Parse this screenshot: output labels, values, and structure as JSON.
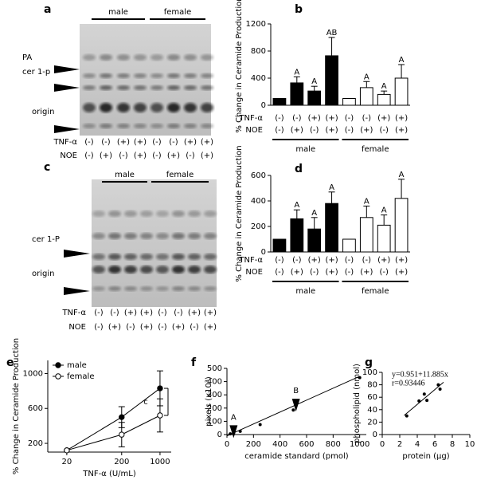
{
  "gels": [
    {
      "label": "a",
      "groups": [
        "male",
        "female"
      ],
      "band_labels": [
        "PA",
        "cer 1-p",
        "origin"
      ],
      "rows": [
        {
          "name": "TNF-α",
          "labels": [
            "(-)",
            "(-)",
            "(+)",
            "(+)",
            "(-)",
            "(-)",
            "(+)",
            "(+)"
          ]
        },
        {
          "name": "NOE",
          "labels": [
            "(-)",
            "(+)",
            "(-)",
            "(+)",
            "(-)",
            "(+)",
            "(-)",
            "(+)"
          ]
        }
      ]
    },
    {
      "label": "c",
      "groups": [
        "male",
        "female"
      ],
      "band_labels": [
        "cer 1-P",
        "origin"
      ],
      "rows": [
        {
          "name": "TNF-α",
          "labels": [
            "(-)",
            "(-)",
            "(+)",
            "(+)",
            "(-)",
            "(-)",
            "(+)",
            "(+)"
          ]
        },
        {
          "name": "NOE",
          "labels": [
            "(-)",
            "(+)",
            "(-)",
            "(+)",
            "(-)",
            "(+)",
            "(-)",
            "(+)"
          ]
        }
      ]
    }
  ],
  "chart_data": [
    {
      "type": "bar",
      "label": "b",
      "y_label": "% Change in Ceramide Production",
      "ylim": [
        0,
        1200
      ],
      "yticks": [
        0,
        400,
        800,
        1200
      ],
      "rows": [
        {
          "name": "TNF-α",
          "labels": [
            "(-)",
            "(-)",
            "(+)",
            "(+)",
            "(-)",
            "(-)",
            "(+)",
            "(+)"
          ]
        },
        {
          "name": "NOE",
          "labels": [
            "(-)",
            "(+)",
            "(-)",
            "(+)",
            "(-)",
            "(+)",
            "(-)",
            "(+)"
          ]
        }
      ],
      "series": [
        {
          "name": "male",
          "color": "#000000",
          "values": [
            100,
            330,
            210,
            730
          ],
          "errors": [
            null,
            90,
            70,
            270
          ],
          "annotations": [
            null,
            "A",
            "A",
            "AB"
          ]
        },
        {
          "name": "female",
          "color": "#ffffff",
          "values": [
            100,
            260,
            160,
            400
          ],
          "errors": [
            null,
            90,
            50,
            200
          ],
          "annotations": [
            null,
            "A",
            "A",
            "A"
          ]
        }
      ]
    },
    {
      "type": "bar",
      "label": "d",
      "y_label": "% Change in Ceramide Production",
      "ylim": [
        0,
        600
      ],
      "yticks": [
        0,
        200,
        400,
        600
      ],
      "rows": [
        {
          "name": "TNF-α",
          "labels": [
            "(-)",
            "(-)",
            "(+)",
            "(+)",
            "(-)",
            "(-)",
            "(+)",
            "(+)"
          ]
        },
        {
          "name": "NOE",
          "labels": [
            "(-)",
            "(+)",
            "(-)",
            "(+)",
            "(-)",
            "(+)",
            "(-)",
            "(+)"
          ]
        }
      ],
      "series": [
        {
          "name": "male",
          "color": "#000000",
          "values": [
            100,
            260,
            180,
            380
          ],
          "errors": [
            null,
            70,
            90,
            90
          ],
          "annotations": [
            null,
            "A",
            "A",
            "A"
          ]
        },
        {
          "name": "female",
          "color": "#ffffff",
          "values": [
            100,
            270,
            210,
            420
          ],
          "errors": [
            null,
            90,
            80,
            150
          ],
          "annotations": [
            null,
            "A",
            "A",
            "A"
          ]
        }
      ]
    },
    {
      "type": "line",
      "label": "e",
      "x_label": "TNF-α (U/mL)",
      "y_label": "% Change in Ceramide Production",
      "xscale": "log",
      "x": [
        20,
        200,
        1000
      ],
      "xlim": [
        9,
        1600
      ],
      "xticks": [
        20,
        200,
        1000
      ],
      "ylim": [
        100,
        1150
      ],
      "yticks": [
        200,
        600,
        1000
      ],
      "annotation": "c",
      "series": [
        {
          "name": "male",
          "color": "#000000",
          "marker_fill": "#000000",
          "values": [
            120,
            500,
            830
          ],
          "errors": [
            null,
            120,
            200
          ]
        },
        {
          "name": "female",
          "color": "#000000",
          "marker_fill": "#ffffff",
          "values": [
            120,
            300,
            520
          ],
          "errors": [
            null,
            140,
            190
          ]
        }
      ]
    },
    {
      "type": "scatter",
      "label": "f",
      "x_label": "ceramide standard (pmol)",
      "y_label": "pixels (x10³)",
      "xlim": [
        0,
        1050
      ],
      "xticks": [
        0,
        200,
        400,
        600,
        800,
        1000
      ],
      "ylim": [
        0,
        500
      ],
      "yticks": [
        0,
        100,
        200,
        300,
        400,
        500
      ],
      "series": [
        {
          "color": "#000000",
          "x": [
            25,
            50,
            100,
            250,
            500,
            1000
          ],
          "values": [
            5,
            10,
            25,
            75,
            185,
            430
          ]
        }
      ],
      "fit_line": {
        "x": [
          0,
          1000
        ],
        "y": [
          -10,
          440
        ]
      },
      "annotations": [
        {
          "text": "A",
          "x": 50,
          "y": 70
        },
        {
          "text": "B",
          "x": 520,
          "y": 270
        }
      ]
    },
    {
      "type": "scatter",
      "label": "g",
      "x_label": "protein (μg)",
      "y_label": "phospholipid (nmol)",
      "xlim": [
        0,
        10
      ],
      "xticks": [
        0,
        2,
        4,
        6,
        8,
        10
      ],
      "ylim": [
        0,
        100
      ],
      "yticks": [
        0,
        20,
        40,
        60,
        80,
        100
      ],
      "series": [
        {
          "color": "#000000",
          "x": [
            2.8,
            4.2,
            4.8,
            5.1,
            6.4,
            6.6
          ],
          "values": [
            30,
            54,
            65,
            55,
            80,
            73
          ]
        }
      ],
      "fit_line": {
        "x": [
          2.5,
          7
        ],
        "y": [
          30.7,
          84.1
        ]
      },
      "fit_text": [
        "y=0.951+11.885x",
        "r=0.93446"
      ]
    }
  ]
}
